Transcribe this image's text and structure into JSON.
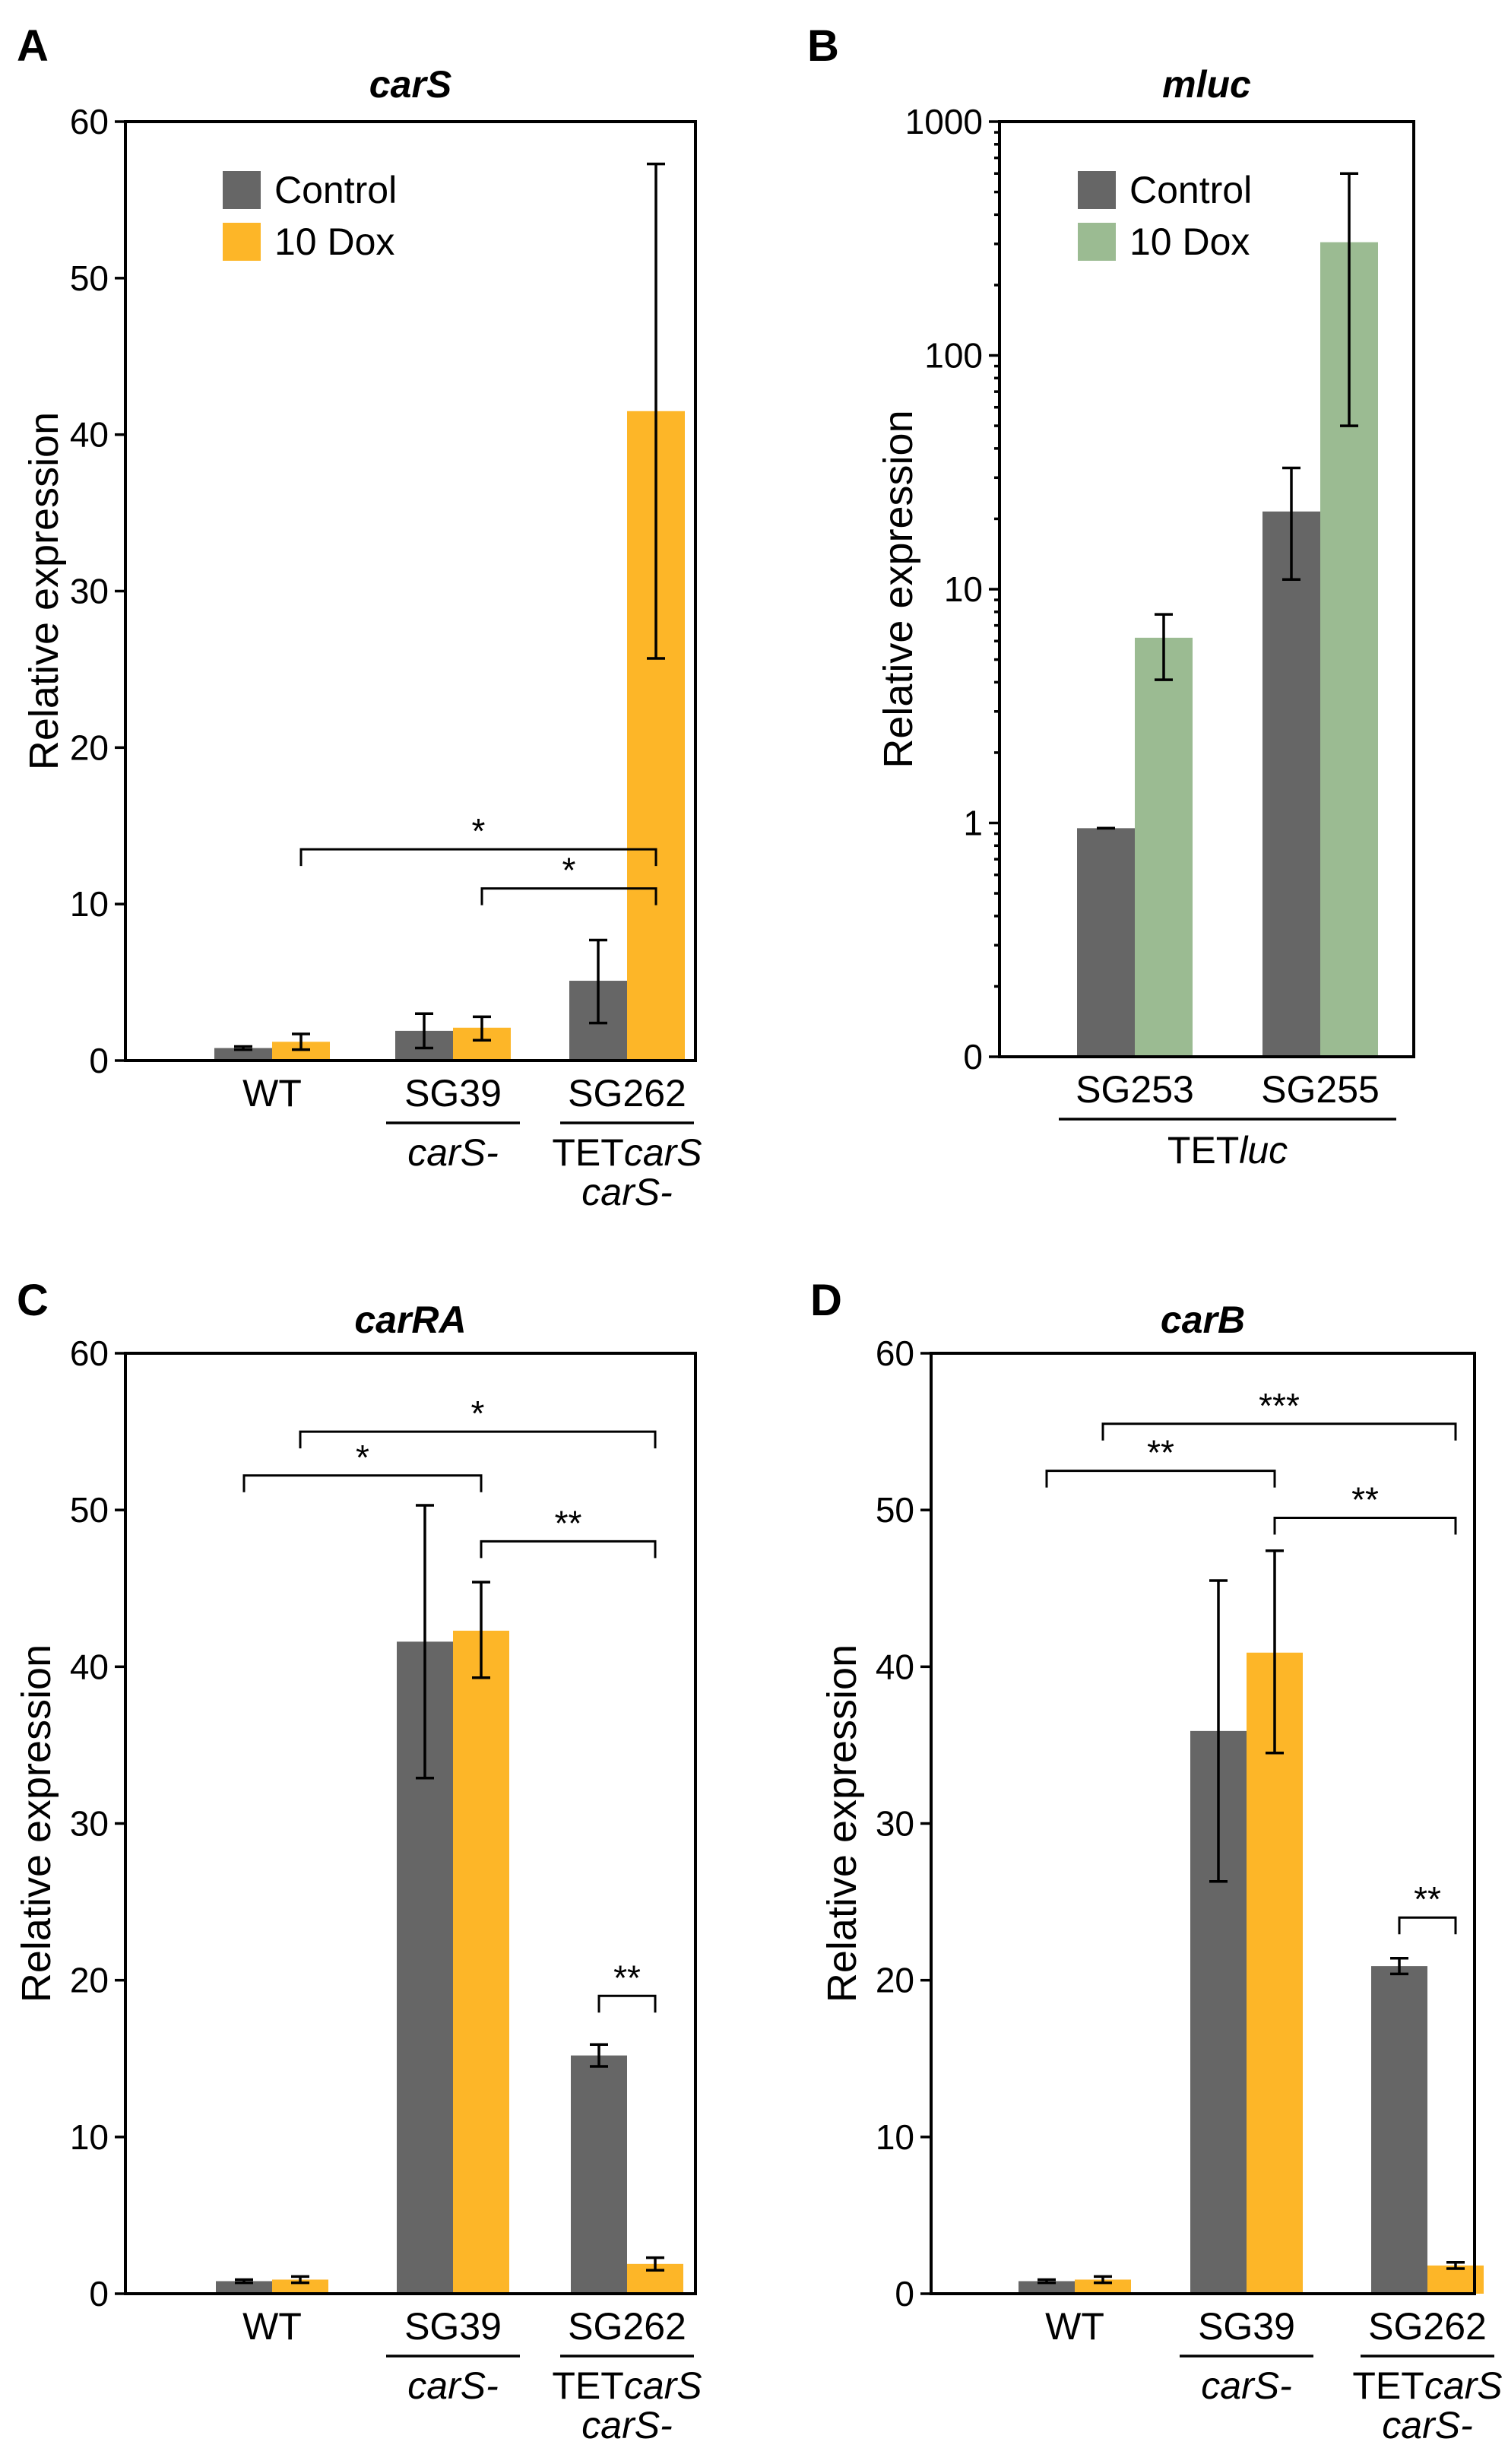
{
  "colors": {
    "control": "#666666",
    "dox_orange": "#FDB628",
    "dox_green": "#9BBB92",
    "axis": "#000000"
  },
  "chart_data": [
    {
      "panel": "A",
      "type": "bar",
      "title": "carS",
      "ylabel": "Relative expression",
      "yscale": "linear",
      "ylim": [
        0,
        60
      ],
      "yticks": [
        0,
        10,
        20,
        30,
        40,
        50,
        60
      ],
      "categories": [
        "WT",
        "SG39",
        "SG262"
      ],
      "sublabels": [
        "",
        "carS-",
        "TETcarS carS-"
      ],
      "legend": {
        "position": "top-left",
        "entries": [
          "Control",
          "10 Dox"
        ]
      },
      "series": [
        {
          "name": "Control",
          "color": "#666666",
          "values": [
            0.8,
            1.9,
            5.1
          ],
          "err_low": [
            0.7,
            0.8,
            2.4
          ],
          "err_high": [
            0.9,
            3.0,
            7.7
          ]
        },
        {
          "name": "10 Dox",
          "color": "#FDB628",
          "values": [
            1.2,
            2.1,
            41.5
          ],
          "err_low": [
            0.7,
            1.3,
            25.7
          ],
          "err_high": [
            1.7,
            2.8,
            57.3
          ]
        }
      ],
      "significance": [
        {
          "from": [
            0,
            1
          ],
          "to": [
            2,
            1
          ],
          "label": "*",
          "y": 13.5
        },
        {
          "from": [
            1,
            1
          ],
          "to": [
            2,
            1
          ],
          "label": "*",
          "y": 11.0
        }
      ]
    },
    {
      "panel": "B",
      "type": "bar",
      "title": "mluc",
      "ylabel": "Relative expression",
      "yscale": "log",
      "ylim": [
        0,
        1000
      ],
      "yticks": [
        0,
        1,
        10,
        100,
        1000
      ],
      "categories": [
        "SG253",
        "SG255"
      ],
      "group_label": "TETluc",
      "legend": {
        "position": "top-left",
        "entries": [
          "Control",
          "10 Dox"
        ]
      },
      "series": [
        {
          "name": "Control",
          "color": "#666666",
          "values": [
            0.95,
            21.5
          ],
          "err_low": [
            0.95,
            11.0
          ],
          "err_high": [
            0.95,
            33.0
          ]
        },
        {
          "name": "10 Dox",
          "color": "#9BBB92",
          "values": [
            6.2,
            305
          ],
          "err_low": [
            4.1,
            50
          ],
          "err_high": [
            7.8,
            600
          ]
        }
      ],
      "significance": []
    },
    {
      "panel": "C",
      "type": "bar",
      "title": "carRA",
      "ylabel": "Relative expression",
      "yscale": "linear",
      "ylim": [
        0,
        60
      ],
      "yticks": [
        0,
        10,
        20,
        30,
        40,
        50,
        60
      ],
      "categories": [
        "WT",
        "SG39",
        "SG262"
      ],
      "sublabels": [
        "",
        "carS-",
        "TETcarS carS-"
      ],
      "series": [
        {
          "name": "Control",
          "color": "#666666",
          "values": [
            0.8,
            41.6,
            15.2
          ],
          "err_low": [
            0.7,
            32.9,
            14.5
          ],
          "err_high": [
            0.9,
            50.3,
            15.9
          ]
        },
        {
          "name": "10 Dox",
          "color": "#FDB628",
          "values": [
            0.9,
            42.3,
            1.9
          ],
          "err_low": [
            0.7,
            39.3,
            1.5
          ],
          "err_high": [
            1.1,
            45.4,
            2.3
          ]
        }
      ],
      "significance": [
        {
          "from": [
            0,
            1
          ],
          "to": [
            2,
            1
          ],
          "label": "*",
          "y": 55.0
        },
        {
          "from": [
            0,
            0
          ],
          "to": [
            1,
            1
          ],
          "label": "*",
          "y": 52.2
        },
        {
          "from": [
            1,
            1
          ],
          "to": [
            2,
            1
          ],
          "label": "**",
          "y": 48.0
        },
        {
          "from": [
            2,
            0
          ],
          "to": [
            2,
            1
          ],
          "label": "**",
          "y": 19.0
        }
      ]
    },
    {
      "panel": "D",
      "type": "bar",
      "title": "carB",
      "ylabel": "Relative expression",
      "yscale": "linear",
      "ylim": [
        0,
        60
      ],
      "yticks": [
        0,
        10,
        20,
        30,
        40,
        50,
        60
      ],
      "categories": [
        "WT",
        "SG39",
        "SG262"
      ],
      "sublabels": [
        "",
        "carS-",
        "TETcarS carS-"
      ],
      "series": [
        {
          "name": "Control",
          "color": "#666666",
          "values": [
            0.8,
            35.9,
            20.9
          ],
          "err_low": [
            0.7,
            26.3,
            20.4
          ],
          "err_high": [
            0.9,
            45.5,
            21.4
          ]
        },
        {
          "name": "10 Dox",
          "color": "#FDB628",
          "values": [
            0.9,
            40.9,
            1.8
          ],
          "err_low": [
            0.7,
            34.5,
            1.6
          ],
          "err_high": [
            1.1,
            47.4,
            2.0
          ]
        }
      ],
      "significance": [
        {
          "from": [
            0,
            1
          ],
          "to": [
            2,
            1
          ],
          "label": "***",
          "y": 55.5
        },
        {
          "from": [
            0,
            0
          ],
          "to": [
            1,
            1
          ],
          "label": "**",
          "y": 52.5
        },
        {
          "from": [
            1,
            1
          ],
          "to": [
            2,
            1
          ],
          "label": "**",
          "y": 49.5
        },
        {
          "from": [
            2,
            0
          ],
          "to": [
            2,
            1
          ],
          "label": "**",
          "y": 24.0
        }
      ]
    }
  ]
}
